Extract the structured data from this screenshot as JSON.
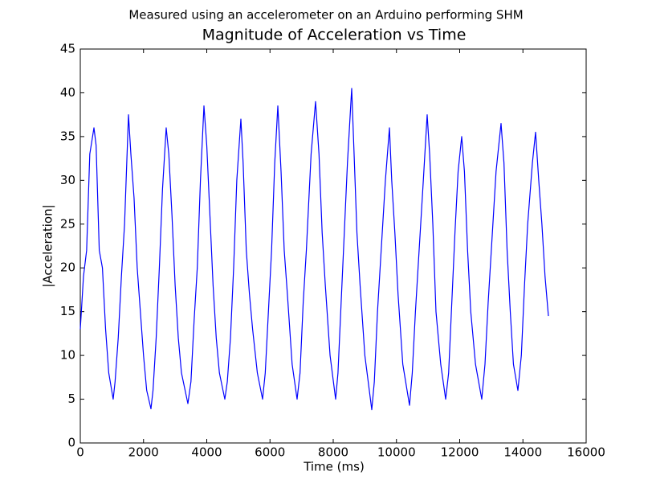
{
  "chart_data": {
    "type": "line",
    "suptitle": "Measured using an accelerometer on an Arduino performing SHM",
    "title": "Magnitude of Acceleration vs Time",
    "x_label": "Time (ms)",
    "y_label": "|Acceleration|",
    "xlim": [
      0,
      16000
    ],
    "xticks": [
      0,
      2000,
      4000,
      6000,
      8000,
      10000,
      12000,
      14000,
      16000
    ],
    "ylim": [
      0,
      45
    ],
    "yticks": [
      0,
      5,
      10,
      15,
      20,
      25,
      30,
      35,
      40,
      45
    ],
    "grid": false,
    "series": [
      {
        "color": "#0000ff",
        "x": [
          0,
          100,
          200,
          300,
          432,
          500,
          600,
          700,
          800,
          900,
          1040,
          1100,
          1200,
          1300,
          1400,
          1524,
          1600,
          1700,
          1800,
          1900,
          2000,
          2100,
          2235,
          2300,
          2400,
          2500,
          2600,
          2717,
          2800,
          2900,
          3000,
          3100,
          3200,
          3403,
          3500,
          3600,
          3700,
          3800,
          3911,
          4000,
          4100,
          4200,
          4300,
          4400,
          4571,
          4650,
          4750,
          4850,
          4950,
          5079,
          5150,
          5250,
          5350,
          5450,
          5600,
          5765,
          5850,
          5950,
          6050,
          6150,
          6248,
          6350,
          6450,
          6550,
          6700,
          6857,
          6950,
          7050,
          7150,
          7300,
          7441,
          7550,
          7650,
          7750,
          7900,
          8076,
          8150,
          8250,
          8350,
          8450,
          8584,
          8650,
          8750,
          8850,
          9000,
          9219,
          9300,
          9400,
          9500,
          9650,
          9778,
          9850,
          9950,
          10050,
          10200,
          10413,
          10500,
          10600,
          10700,
          10850,
          10971,
          11050,
          11150,
          11250,
          11400,
          11556,
          11650,
          11750,
          11850,
          11950,
          12063,
          12150,
          12250,
          12350,
          12500,
          12698,
          12800,
          12900,
          13000,
          13150,
          13308,
          13400,
          13500,
          13600,
          13700,
          13841,
          13950,
          14050,
          14150,
          14300,
          14400,
          14500,
          14600,
          14700,
          14806
        ],
        "values": [
          13,
          19,
          22,
          33,
          36,
          34,
          22,
          20,
          13,
          8,
          5,
          7,
          12,
          19,
          25,
          37.5,
          33,
          28,
          20,
          15,
          10,
          6,
          3.9,
          6,
          12,
          20,
          29,
          36,
          33,
          26,
          18,
          12,
          8,
          4.5,
          7,
          14,
          20,
          30,
          38.5,
          34,
          26,
          18,
          12,
          8,
          5,
          7,
          12,
          20,
          30,
          37,
          32,
          22,
          17,
          13,
          8,
          5,
          8,
          15,
          22,
          32,
          38.5,
          31,
          22,
          17,
          9,
          5,
          8,
          16,
          22,
          33,
          39,
          33,
          24,
          18,
          10,
          5,
          8,
          16,
          24,
          32,
          40.5,
          34,
          24,
          18,
          10,
          3.8,
          7,
          15,
          21,
          30,
          36,
          30,
          24,
          17,
          9,
          4.3,
          8,
          15,
          21,
          30,
          37.5,
          33,
          25,
          15,
          9,
          5,
          8,
          16,
          24,
          31,
          35,
          31,
          22,
          15,
          9,
          5,
          9,
          16,
          22,
          31,
          36.5,
          32,
          22,
          15,
          9,
          6,
          10,
          18,
          25,
          32,
          35.5,
          30,
          25,
          19,
          14.5
        ]
      }
    ]
  }
}
